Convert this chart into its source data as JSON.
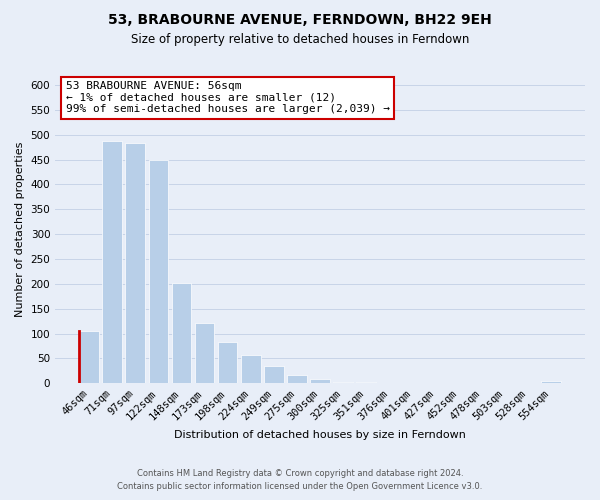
{
  "title": "53, BRABOURNE AVENUE, FERNDOWN, BH22 9EH",
  "subtitle": "Size of property relative to detached houses in Ferndown",
  "xlabel": "Distribution of detached houses by size in Ferndown",
  "ylabel": "Number of detached properties",
  "footer_line1": "Contains HM Land Registry data © Crown copyright and database right 2024.",
  "footer_line2": "Contains public sector information licensed under the Open Government Licence v3.0.",
  "bar_labels": [
    "46sqm",
    "71sqm",
    "97sqm",
    "122sqm",
    "148sqm",
    "173sqm",
    "198sqm",
    "224sqm",
    "249sqm",
    "275sqm",
    "300sqm",
    "325sqm",
    "351sqm",
    "376sqm",
    "401sqm",
    "427sqm",
    "452sqm",
    "478sqm",
    "503sqm",
    "528sqm",
    "554sqm"
  ],
  "bar_values": [
    106,
    487,
    483,
    450,
    201,
    122,
    82,
    57,
    34,
    16,
    8,
    2,
    2,
    1,
    0,
    0,
    0,
    0,
    0,
    0,
    5
  ],
  "highlight_bar_index": 0,
  "bar_color": "#b8cfe8",
  "highlight_bar_color": "#b8cfe8",
  "highlight_border_color": "#cc0000",
  "annotation_line1": "53 BRABOURNE AVENUE: 56sqm",
  "annotation_line2": "← 1% of detached houses are smaller (12)",
  "annotation_line3": "99% of semi-detached houses are larger (2,039) →",
  "annotation_box_color": "white",
  "annotation_border_color": "#cc0000",
  "ylim": [
    0,
    620
  ],
  "yticks": [
    0,
    50,
    100,
    150,
    200,
    250,
    300,
    350,
    400,
    450,
    500,
    550,
    600
  ],
  "grid_color": "#c8d4e8",
  "background_color": "#e8eef8",
  "title_fontsize": 10,
  "subtitle_fontsize": 8.5,
  "annotation_fontsize": 8,
  "ylabel_fontsize": 8,
  "xlabel_fontsize": 8,
  "tick_fontsize": 7.5,
  "footer_fontsize": 6
}
